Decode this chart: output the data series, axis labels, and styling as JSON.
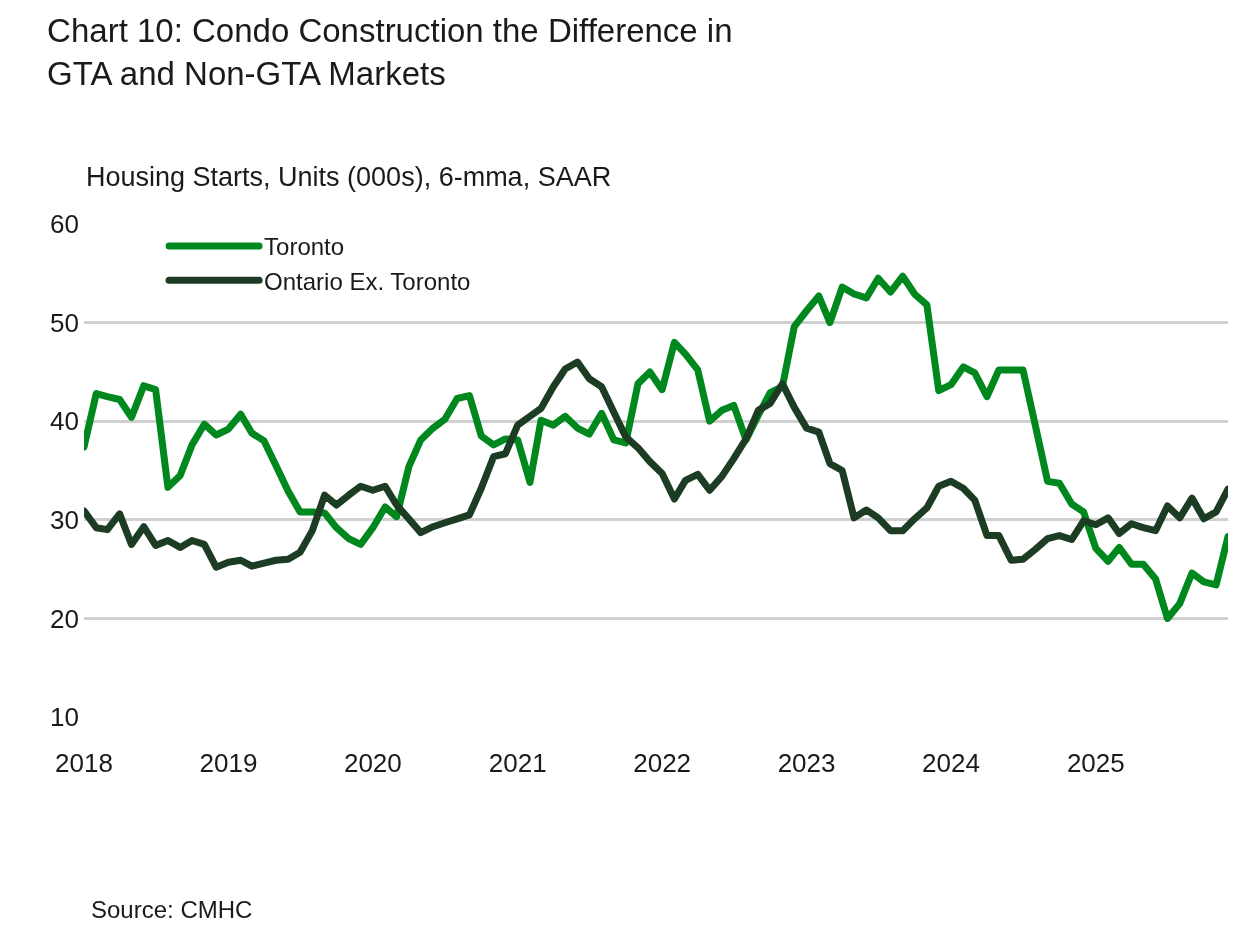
{
  "chart_data": {
    "type": "line",
    "title": "Chart 10: Condo Construction the Difference in\nGTA and Non-GTA Markets",
    "ylabel": "Housing Starts, Units (000s), 6-mma, SAAR",
    "x": [
      "2018-01",
      "2018-02",
      "2018-03",
      "2018-04",
      "2018-05",
      "2018-06",
      "2018-07",
      "2018-08",
      "2018-09",
      "2018-10",
      "2018-11",
      "2018-12",
      "2019-01",
      "2019-02",
      "2019-03",
      "2019-04",
      "2019-05",
      "2019-06",
      "2019-07",
      "2019-08",
      "2019-09",
      "2019-10",
      "2019-11",
      "2019-12",
      "2020-01",
      "2020-02",
      "2020-03",
      "2020-04",
      "2020-05",
      "2020-06",
      "2020-07",
      "2020-08",
      "2020-09",
      "2020-10",
      "2020-11",
      "2020-12",
      "2021-01",
      "2021-02",
      "2021-03",
      "2021-04",
      "2021-05",
      "2021-06",
      "2021-07",
      "2021-08",
      "2021-09",
      "2021-10",
      "2021-11",
      "2021-12",
      "2022-01",
      "2022-02",
      "2022-03",
      "2022-04",
      "2022-05",
      "2022-06",
      "2022-07",
      "2022-08",
      "2022-09",
      "2022-10",
      "2022-11",
      "2022-12",
      "2023-01",
      "2023-02",
      "2023-03",
      "2023-04",
      "2023-05",
      "2023-06",
      "2023-07",
      "2023-08",
      "2023-09",
      "2023-10",
      "2023-11",
      "2023-12",
      "2024-01",
      "2024-02",
      "2024-03",
      "2024-04",
      "2024-05",
      "2024-06",
      "2024-07",
      "2024-08",
      "2024-09",
      "2024-10",
      "2024-11",
      "2024-12",
      "2025-01",
      "2025-02",
      "2025-03",
      "2025-04",
      "2025-05",
      "2025-06",
      "2025-07",
      "2025-08",
      "2025-09",
      "2025-10",
      "2025-11",
      "2025-12"
    ],
    "series": [
      {
        "name": "Toronto",
        "color": "#00881e",
        "values": [
          37.4,
          42.8,
          42.5,
          42.2,
          40.4,
          43.6,
          43.2,
          33.3,
          34.5,
          37.6,
          39.7,
          38.6,
          39.2,
          40.7,
          38.8,
          38.0,
          35.5,
          32.9,
          30.8,
          30.8,
          30.7,
          29.2,
          28.1,
          27.5,
          29.2,
          31.3,
          30.3,
          35.4,
          38.1,
          39.3,
          40.2,
          42.3,
          42.6,
          38.5,
          37.6,
          38.2,
          38.1,
          33.8,
          40.1,
          39.6,
          40.5,
          39.3,
          38.7,
          40.8,
          38.1,
          37.8,
          43.8,
          45.0,
          43.2,
          48.0,
          46.8,
          45.2,
          40.0,
          41.1,
          41.6,
          38.1,
          40.6,
          42.9,
          43.5,
          49.6,
          51.2,
          52.7,
          50.0,
          53.6,
          52.9,
          52.5,
          54.5,
          53.1,
          54.7,
          52.9,
          51.8,
          43.1,
          43.7,
          45.5,
          44.9,
          42.5,
          45.2,
          45.2,
          45.2,
          39.6,
          33.9,
          33.7,
          31.6,
          30.8,
          27.1,
          25.8,
          27.2,
          25.5,
          25.5,
          24.0,
          20.0,
          21.5,
          24.6,
          23.7,
          23.4,
          28.3
        ]
      },
      {
        "name": "Ontario Ex. Toronto",
        "color": "#1c3d23",
        "values": [
          30.9,
          29.2,
          29.0,
          30.6,
          27.5,
          29.3,
          27.4,
          27.9,
          27.2,
          27.9,
          27.5,
          25.2,
          25.7,
          25.9,
          25.3,
          25.6,
          25.9,
          26.0,
          26.7,
          28.9,
          32.5,
          31.5,
          32.5,
          33.4,
          33.0,
          33.4,
          31.5,
          30.1,
          28.7,
          29.3,
          29.7,
          30.1,
          30.5,
          33.2,
          36.4,
          36.7,
          39.6,
          40.5,
          41.3,
          43.5,
          45.3,
          46.0,
          44.3,
          43.5,
          40.9,
          38.4,
          37.3,
          35.9,
          34.7,
          32.1,
          34.0,
          34.6,
          33.0,
          34.4,
          36.2,
          38.2,
          41.1,
          41.8,
          43.8,
          41.4,
          39.3,
          38.9,
          35.7,
          35.0,
          30.2,
          31.0,
          30.2,
          28.9,
          28.9,
          30.1,
          31.2,
          33.4,
          33.9,
          33.2,
          32.0,
          28.4,
          28.4,
          25.9,
          26.0,
          27.0,
          28.1,
          28.4,
          28.0,
          29.9,
          29.5,
          30.2,
          28.6,
          29.6,
          29.2,
          28.9,
          31.4,
          30.2,
          32.2,
          30.1,
          30.8,
          33.1
        ]
      }
    ],
    "xlim": [
      "2018-01",
      "2025-12"
    ],
    "xticks": [
      {
        "value": "2018-01",
        "label": "2018"
      },
      {
        "value": "2019-01",
        "label": "2019"
      },
      {
        "value": "2020-01",
        "label": "2020"
      },
      {
        "value": "2021-01",
        "label": "2021"
      },
      {
        "value": "2022-01",
        "label": "2022"
      },
      {
        "value": "2023-01",
        "label": "2023"
      },
      {
        "value": "2024-01",
        "label": "2024"
      },
      {
        "value": "2025-01",
        "label": "2025"
      }
    ],
    "ylim": [
      10,
      60
    ],
    "yticks": [
      10,
      20,
      30,
      40,
      50,
      60
    ],
    "grid": "y",
    "legend": "top left",
    "marker": "none",
    "line_style": "solid",
    "annotations": [
      "Source: CMHC"
    ]
  }
}
